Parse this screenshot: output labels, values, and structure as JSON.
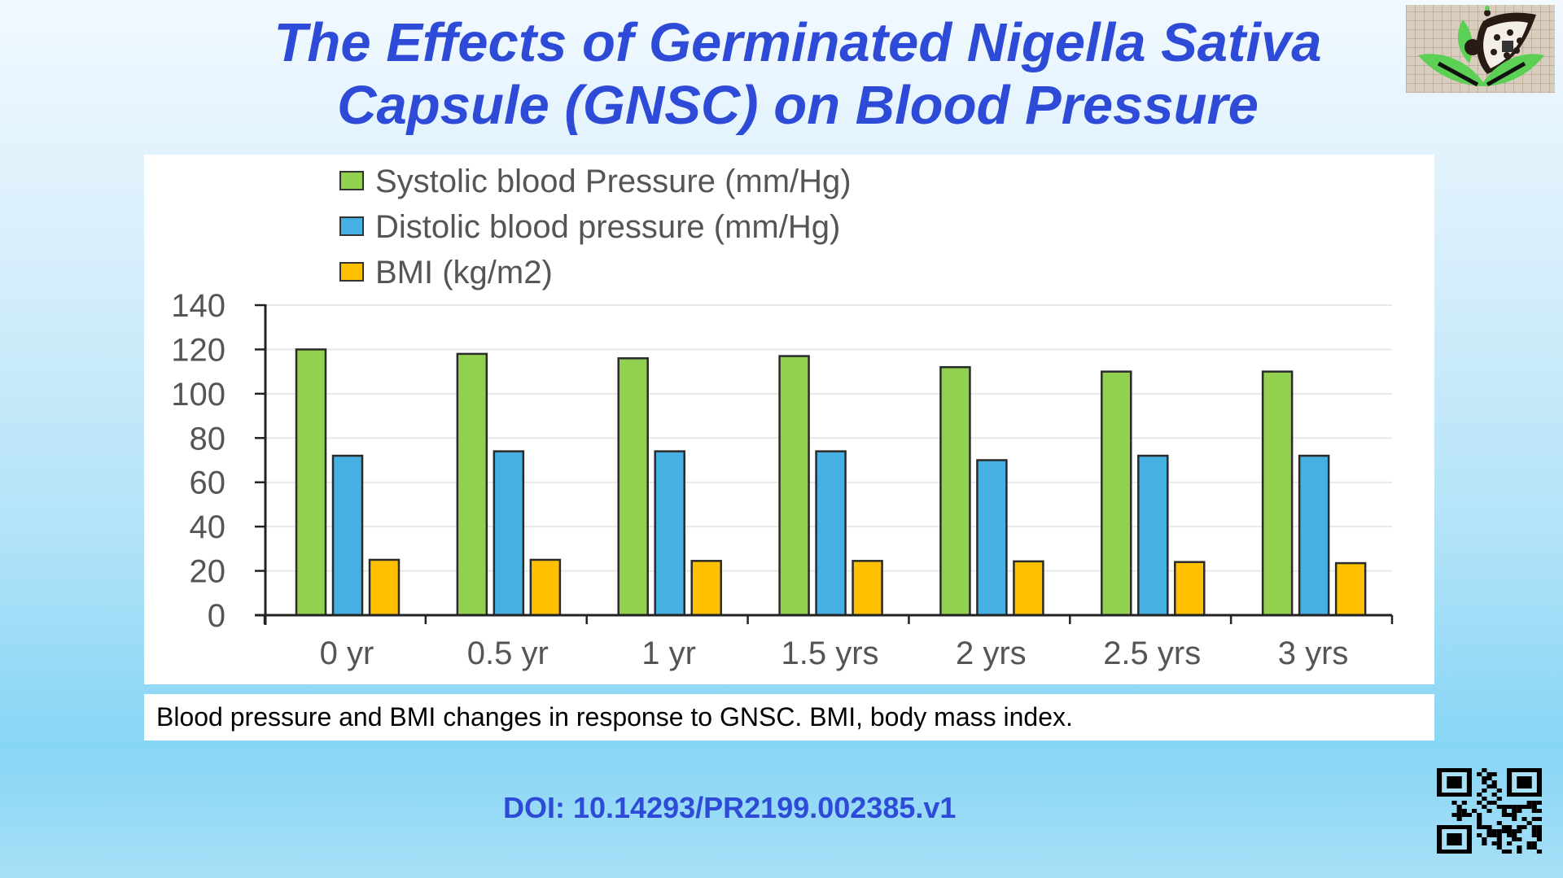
{
  "slide": {
    "title_line1": "The Effects of Germinated Nigella Sativa",
    "title_line2": "Capsule (GNSC) on Blood Pressure",
    "logo": "nigella-seed-leaf-logo",
    "caption": "Blood pressure and BMI changes in response to GNSC. BMI, body mass index.",
    "doi": "DOI: 10.14293/PR2199.002385.v1",
    "qr_code": "qr-code-icon"
  },
  "colors": {
    "title": "#2e4bd8",
    "systolic": "#92d050",
    "diastolic": "#45b0e1",
    "bmi": "#ffc000"
  },
  "chart_data": {
    "type": "bar",
    "title": "",
    "xlabel": "",
    "ylabel": "",
    "categories": [
      "0 yr",
      "0.5 yr",
      "1 yr",
      "1.5 yrs",
      "2 yrs",
      "2.5 yrs",
      "3 yrs"
    ],
    "series": [
      {
        "name": "Systolic blood Pressure (mm/Hg)",
        "color": "#92d050",
        "values": [
          120,
          118,
          116,
          117,
          112,
          110,
          110
        ]
      },
      {
        "name": "Distolic blood pressure (mm/Hg)",
        "color": "#45b0e1",
        "values": [
          72,
          74,
          74,
          74,
          70,
          72,
          72
        ]
      },
      {
        "name": "BMI (kg/m2)",
        "color": "#ffc000",
        "values": [
          25,
          25,
          24.5,
          24.5,
          24.3,
          24,
          23.5
        ]
      }
    ],
    "ylim": [
      0,
      140
    ],
    "yticks": [
      0,
      20,
      40,
      60,
      80,
      100,
      120,
      140
    ],
    "grid": true,
    "legend": "top"
  }
}
